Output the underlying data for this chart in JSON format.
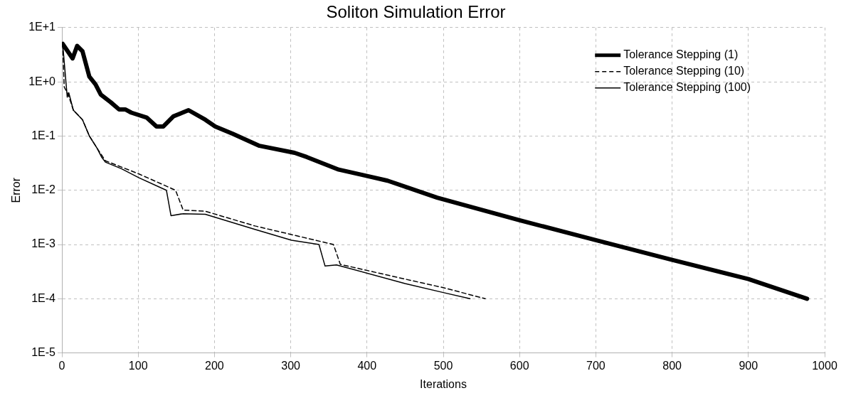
{
  "chart_data": {
    "type": "line",
    "title": "Soliton Simulation Error",
    "xlabel": "Iterations",
    "ylabel": "Error",
    "log": "y",
    "grid": true,
    "legend": "top right",
    "marker": "none",
    "xlim": [
      0,
      1000
    ],
    "xticks": [
      0,
      100,
      200,
      300,
      400,
      500,
      600,
      700,
      800,
      900,
      1000
    ],
    "ylim": [
      1e-05,
      10
    ],
    "yticks": [
      {
        "value": 1e-05,
        "label": "1E-5"
      },
      {
        "value": 0.0001,
        "label": "1E-4"
      },
      {
        "value": 0.001,
        "label": "1E-3"
      },
      {
        "value": 0.01,
        "label": "1E-2"
      },
      {
        "value": 0.1,
        "label": "1E-1"
      },
      {
        "value": 1,
        "label": "1E+0"
      },
      {
        "value": 10,
        "label": "1E+1"
      }
    ],
    "series": [
      {
        "name": "Tolerance Stepping (1)",
        "color": "#000000",
        "line_style": "solid",
        "x": [
          1,
          14,
          20,
          27,
          36,
          44,
          51,
          64,
          75,
          83,
          91,
          111,
          124,
          133,
          146,
          166,
          188,
          201,
          224,
          259,
          305,
          321,
          363,
          395,
          427,
          492,
          600,
          700,
          800,
          900,
          977
        ],
        "values": [
          5,
          2.7,
          4.6,
          3.65,
          1.24,
          0.9,
          0.58,
          0.42,
          0.31,
          0.31,
          0.27,
          0.22,
          0.15,
          0.15,
          0.23,
          0.3,
          0.2,
          0.15,
          0.11,
          0.066,
          0.049,
          0.041,
          0.024,
          0.019,
          0.015,
          0.0073,
          0.0028,
          0.0012,
          0.00052,
          0.00023,
          0.0001
        ]
      },
      {
        "name": "Tolerance Stepping (10)",
        "color": "#000000",
        "line_style": "dashed",
        "x": [
          1,
          3,
          8,
          15,
          27,
          36,
          46,
          57,
          101,
          149,
          159,
          188,
          253,
          356,
          365,
          450,
          500,
          555
        ],
        "values": [
          5,
          0.8,
          0.6,
          0.3,
          0.2,
          0.1,
          0.06,
          0.035,
          0.02,
          0.01,
          0.0043,
          0.0041,
          0.0022,
          0.001,
          0.00043,
          0.00023,
          0.00016,
          0.0001
        ]
      },
      {
        "name": "Tolerance Stepping (100)",
        "color": "#000000",
        "line_style": "solid",
        "x": [
          1,
          7,
          9,
          15,
          27,
          36,
          46,
          52,
          57,
          78,
          101,
          137,
          143,
          159,
          188,
          253,
          301,
          337,
          345,
          360,
          450,
          500,
          535
        ],
        "values": [
          5,
          0.52,
          0.63,
          0.3,
          0.2,
          0.1,
          0.06,
          0.041,
          0.033,
          0.025,
          0.017,
          0.01,
          0.0034,
          0.0037,
          0.0036,
          0.0019,
          0.0012,
          0.001,
          0.0004,
          0.00042,
          0.00019,
          0.00013,
          0.0001
        ]
      }
    ]
  }
}
